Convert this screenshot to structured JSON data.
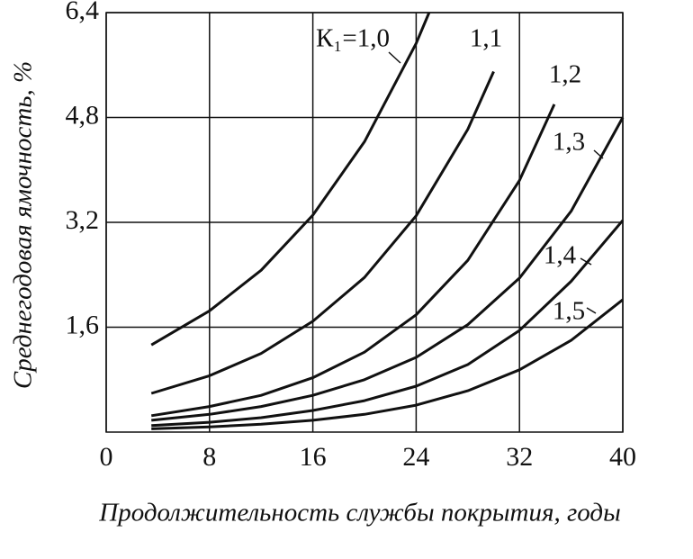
{
  "chart_data": {
    "type": "line",
    "x_label": "Продолжительность службы покрытия, годы",
    "y_label": "Среднегодовая ямочность, %",
    "xlim": [
      0,
      40
    ],
    "ylim": [
      0,
      6.4
    ],
    "xticks": [
      0,
      8,
      16,
      24,
      32,
      40
    ],
    "yticks": [
      {
        "value": 1.6,
        "label": "1,6"
      },
      {
        "value": 3.2,
        "label": "3,2"
      },
      {
        "value": 4.8,
        "label": "4,8"
      },
      {
        "value": 6.4,
        "label": "6,4"
      }
    ],
    "grid": true,
    "series": [
      {
        "name": "К₁=1,0",
        "color": "#111111",
        "x": [
          3.5,
          8,
          12,
          16,
          20,
          24,
          25
        ],
        "values": [
          1.33,
          1.85,
          2.47,
          3.31,
          4.43,
          5.93,
          6.4
        ]
      },
      {
        "name": "1,1",
        "color": "#111111",
        "x": [
          3.5,
          8,
          12,
          16,
          20,
          24,
          28,
          30
        ],
        "values": [
          0.59,
          0.86,
          1.2,
          1.69,
          2.36,
          3.3,
          4.62,
          5.5
        ]
      },
      {
        "name": "1,2",
        "color": "#111111",
        "x": [
          3.5,
          8,
          12,
          16,
          20,
          24,
          28,
          32,
          34.7
        ],
        "values": [
          0.25,
          0.39,
          0.56,
          0.83,
          1.22,
          1.79,
          2.62,
          3.84,
          5.0
        ]
      },
      {
        "name": "1,3",
        "color": "#111111",
        "x": [
          3.5,
          8,
          12,
          16,
          20,
          24,
          28,
          32,
          36,
          40
        ],
        "values": [
          0.18,
          0.27,
          0.39,
          0.56,
          0.8,
          1.14,
          1.64,
          2.35,
          3.37,
          4.8
        ]
      },
      {
        "name": "1,4",
        "color": "#111111",
        "x": [
          3.5,
          8,
          12,
          16,
          20,
          24,
          28,
          32,
          36,
          40
        ],
        "values": [
          0.1,
          0.15,
          0.22,
          0.33,
          0.48,
          0.7,
          1.03,
          1.55,
          2.3,
          3.23
        ]
      },
      {
        "name": "1,5",
        "color": "#111111",
        "x": [
          3.5,
          8,
          12,
          16,
          20,
          24,
          28,
          32,
          36,
          40
        ],
        "values": [
          0.05,
          0.08,
          0.12,
          0.18,
          0.27,
          0.41,
          0.63,
          0.95,
          1.4,
          2.02
        ]
      }
    ]
  }
}
